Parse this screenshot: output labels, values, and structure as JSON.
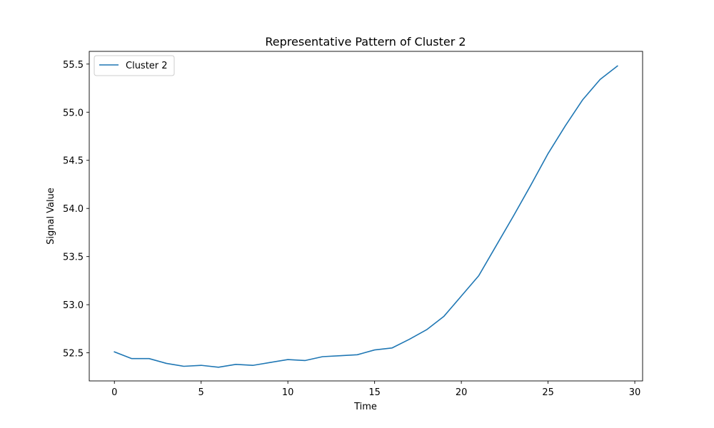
{
  "chart_data": {
    "type": "line",
    "title": "Representative Pattern of Cluster 2",
    "xlabel": "Time",
    "ylabel": "Signal Value",
    "xlim": [
      -1.45,
      30.45
    ],
    "ylim": [
      52.208,
      55.632
    ],
    "xticks": [
      0,
      5,
      10,
      15,
      20,
      25,
      30
    ],
    "yticks": [
      52.5,
      53.0,
      53.5,
      54.0,
      54.5,
      55.0,
      55.5
    ],
    "grid": false,
    "legend_position": "top-left",
    "series": [
      {
        "name": "Cluster 2",
        "color": "#1f77b4",
        "x": [
          0,
          1,
          2,
          3,
          4,
          5,
          6,
          7,
          8,
          9,
          10,
          11,
          12,
          13,
          14,
          15,
          16,
          17,
          18,
          19,
          20,
          21,
          22,
          23,
          24,
          25,
          26,
          27,
          28,
          29
        ],
        "y": [
          52.51,
          52.44,
          52.44,
          52.39,
          52.36,
          52.37,
          52.35,
          52.38,
          52.37,
          52.4,
          52.43,
          52.42,
          52.46,
          52.47,
          52.48,
          52.53,
          52.55,
          52.64,
          52.74,
          52.88,
          53.09,
          53.3,
          53.61,
          53.92,
          54.24,
          54.57,
          54.86,
          55.13,
          55.34,
          55.48
        ]
      }
    ]
  }
}
